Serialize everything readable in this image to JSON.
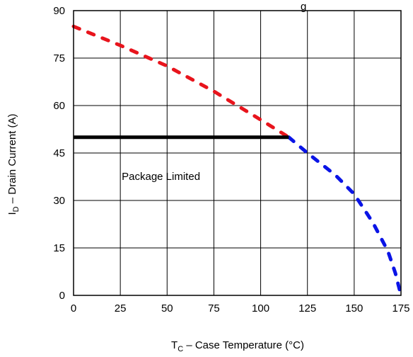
{
  "chart_data": {
    "type": "line",
    "title": "",
    "title_partial": "g",
    "xlabel": {
      "main": "T",
      "sub": "C",
      "rest": " – Case Temperature (°C)"
    },
    "ylabel": {
      "main": "I",
      "sub": "D",
      "rest": " – Drain Current (A)"
    },
    "xlim": [
      0,
      175
    ],
    "ylim": [
      0,
      90
    ],
    "xticks": [
      "0",
      "25",
      "50",
      "75",
      "100",
      "125",
      "150",
      "175"
    ],
    "yticks": [
      "0",
      "15",
      "30",
      "45",
      "60",
      "75",
      "90"
    ],
    "grid": true,
    "annotations": [
      {
        "text": "Package Limited",
        "x": 25,
        "y": 36.5
      }
    ],
    "series": [
      {
        "color": "#e8141c",
        "style": "dashed",
        "x": [
          0,
          25,
          50,
          75,
          100,
          115
        ],
        "y": [
          85,
          79,
          72.5,
          64.5,
          55.5,
          50
        ]
      },
      {
        "color": "#0a14e6",
        "style": "dashed",
        "x": [
          115,
          125,
          140,
          150,
          160,
          168,
          172,
          175
        ],
        "y": [
          50,
          45,
          38,
          32,
          23,
          14,
          7,
          0
        ]
      },
      {
        "color": "#000000",
        "style": "solid",
        "x": [
          0,
          115
        ],
        "y": [
          50,
          50
        ]
      }
    ]
  }
}
